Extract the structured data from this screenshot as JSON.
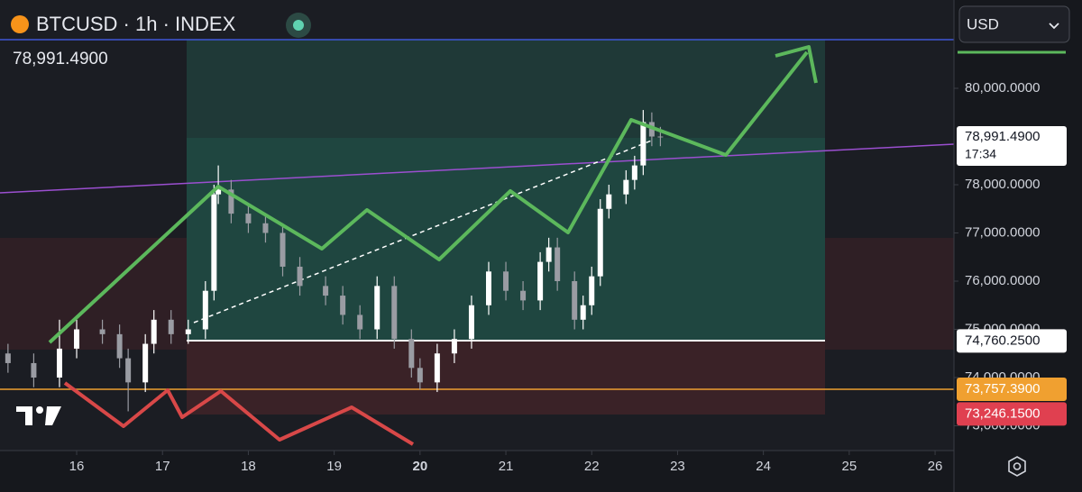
{
  "chart_data": {
    "type": "candlestick",
    "title": "BTCUSD · 1h · INDEX",
    "last_price": "78,991.4900",
    "currency": "USD",
    "x": [
      15.2,
      15.5,
      15.8,
      16.0,
      16.3,
      16.5,
      16.6,
      16.8,
      16.9,
      17.1,
      17.3,
      17.5,
      17.6,
      17.65,
      17.8,
      18.0,
      18.2,
      18.4,
      18.6,
      18.9,
      19.1,
      19.3,
      19.5,
      19.7,
      19.9,
      20.0,
      20.2,
      20.4,
      20.6,
      20.8,
      21.0,
      21.2,
      21.4,
      21.5,
      21.6,
      21.8,
      21.9,
      22.0,
      22.1,
      22.2,
      22.4,
      22.5,
      22.6,
      22.7,
      22.8
    ],
    "open": [
      74500,
      74300,
      74000,
      74600,
      75000,
      74900,
      74400,
      73900,
      74700,
      75200,
      74900,
      75000,
      75800,
      77800,
      77900,
      77400,
      77200,
      77000,
      76300,
      75900,
      75700,
      75300,
      75000,
      75900,
      74800,
      74200,
      73900,
      74500,
      74800,
      75500,
      76200,
      75800,
      75600,
      76400,
      76700,
      76000,
      75200,
      75500,
      76100,
      77500,
      77800,
      78100,
      78400,
      79300,
      79000
    ],
    "high": [
      74700,
      74500,
      75200,
      75200,
      75200,
      75100,
      74600,
      74900,
      75400,
      75400,
      75200,
      76000,
      78000,
      78400,
      78100,
      77600,
      77400,
      77200,
      76500,
      76100,
      75900,
      75500,
      76100,
      76100,
      75000,
      74400,
      74700,
      75000,
      75700,
      76400,
      76400,
      76000,
      76600,
      76900,
      76900,
      76200,
      75700,
      76300,
      77700,
      78000,
      78300,
      78600,
      79550,
      79500,
      79200
    ],
    "low": [
      74100,
      73800,
      73800,
      74400,
      74700,
      74200,
      73300,
      73700,
      74500,
      74700,
      74700,
      74800,
      75600,
      77600,
      77200,
      77000,
      76800,
      76100,
      75700,
      75500,
      75100,
      74800,
      74800,
      74600,
      74000,
      73750,
      73700,
      74300,
      74600,
      75300,
      75600,
      75400,
      75400,
      76200,
      75800,
      75000,
      75000,
      75300,
      75900,
      77300,
      77600,
      77900,
      78200,
      78800,
      78800
    ],
    "close": [
      74300,
      74000,
      74600,
      75000,
      74900,
      74400,
      73900,
      74700,
      75200,
      74900,
      75000,
      75800,
      77800,
      77900,
      77400,
      77200,
      77000,
      76300,
      75900,
      75700,
      75300,
      75000,
      75900,
      74800,
      74200,
      73900,
      74500,
      74800,
      75500,
      76200,
      75800,
      75600,
      76400,
      76700,
      76000,
      75200,
      75500,
      76100,
      77500,
      77800,
      78100,
      78400,
      79300,
      79000,
      78990
    ],
    "xlim": [
      15.107,
      26.22
    ],
    "xticks": [
      16,
      17,
      18,
      19,
      20,
      21,
      22,
      23,
      24,
      25,
      26
    ],
    "ylim": [
      72486,
      81832
    ],
    "yticks": [
      {
        "value": 73000,
        "label": "73,000.0000"
      },
      {
        "value": 74000,
        "label": "74,000.0000"
      },
      {
        "value": 75000,
        "label": "75,000.0000"
      },
      {
        "value": 76000,
        "label": "76,000.0000"
      },
      {
        "value": 77000,
        "label": "77,000.0000"
      },
      {
        "value": 78000,
        "label": "78,000.0000"
      },
      {
        "value": 80000,
        "label": "80,000.0000"
      }
    ],
    "price_tags": [
      {
        "value": 78991.49,
        "label": "78,991.4900",
        "sublabel": "17:34",
        "color": "#ffffff"
      },
      {
        "value": 74760.25,
        "label": "74,760.2500",
        "color": "#ffffff"
      },
      {
        "value": 73757.39,
        "label": "73,757.3900",
        "color": "#f0a030"
      },
      {
        "value": 73246.15,
        "label": "73,246.1500",
        "color": "#e04050"
      }
    ],
    "up_color": "#ffffff",
    "down_color": "#9a9ca3"
  }
}
